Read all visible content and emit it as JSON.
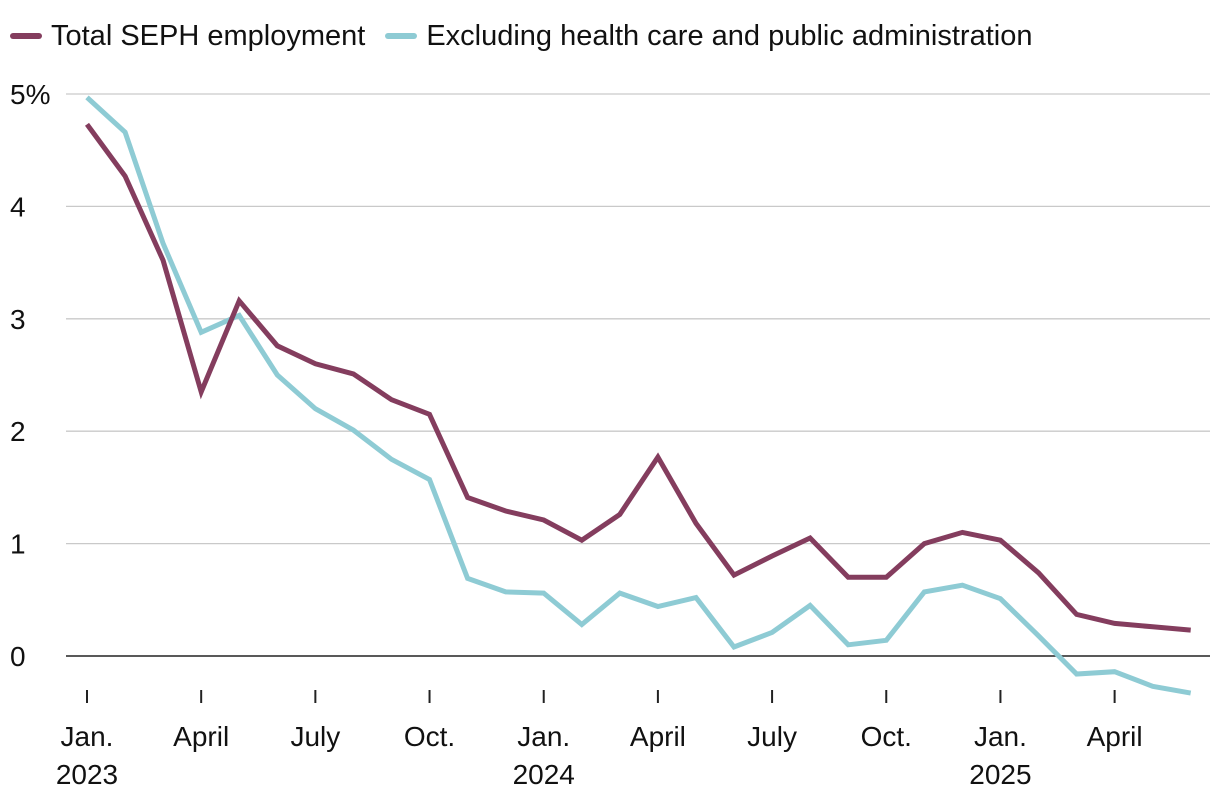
{
  "chart_data": {
    "type": "line",
    "title": "",
    "xlabel": "",
    "ylabel": "",
    "ylim": [
      -0.35,
      5.0
    ],
    "y_ticks": [
      {
        "value": 5,
        "label": "5%"
      },
      {
        "value": 4,
        "label": "4"
      },
      {
        "value": 3,
        "label": "3"
      },
      {
        "value": 2,
        "label": "2"
      },
      {
        "value": 1,
        "label": "1"
      },
      {
        "value": 0,
        "label": "0"
      }
    ],
    "x_ticks": [
      {
        "index": 0,
        "label": "Jan.",
        "year": "2023"
      },
      {
        "index": 3,
        "label": "April",
        "year": ""
      },
      {
        "index": 6,
        "label": "July",
        "year": ""
      },
      {
        "index": 9,
        "label": "Oct.",
        "year": ""
      },
      {
        "index": 12,
        "label": "Jan.",
        "year": "2024"
      },
      {
        "index": 15,
        "label": "April",
        "year": ""
      },
      {
        "index": 18,
        "label": "July",
        "year": ""
      },
      {
        "index": 21,
        "label": "Oct.",
        "year": ""
      },
      {
        "index": 24,
        "label": "Jan.",
        "year": "2025"
      },
      {
        "index": 27,
        "label": "April",
        "year": ""
      }
    ],
    "legend_position": "top-left",
    "series": [
      {
        "name": "Total SEPH employment",
        "color": "#843d5e",
        "values": [
          4.73,
          4.27,
          3.52,
          2.35,
          3.16,
          2.76,
          2.6,
          2.51,
          2.28,
          2.15,
          1.41,
          1.29,
          1.21,
          1.03,
          1.26,
          1.77,
          1.18,
          0.72,
          0.89,
          1.05,
          0.7,
          0.7,
          1.0,
          1.1,
          1.03,
          0.74,
          0.37,
          0.29,
          0.26,
          0.23
        ]
      },
      {
        "name": "Excluding health care and public administration",
        "color": "#8ecbd4",
        "values": [
          4.97,
          4.66,
          3.67,
          2.88,
          3.03,
          2.5,
          2.2,
          2.01,
          1.75,
          1.57,
          0.69,
          0.57,
          0.56,
          0.28,
          0.56,
          0.44,
          0.52,
          0.08,
          0.21,
          0.45,
          0.1,
          0.14,
          0.57,
          0.63,
          0.51,
          0.18,
          -0.16,
          -0.14,
          -0.27,
          -0.33
        ]
      }
    ]
  }
}
